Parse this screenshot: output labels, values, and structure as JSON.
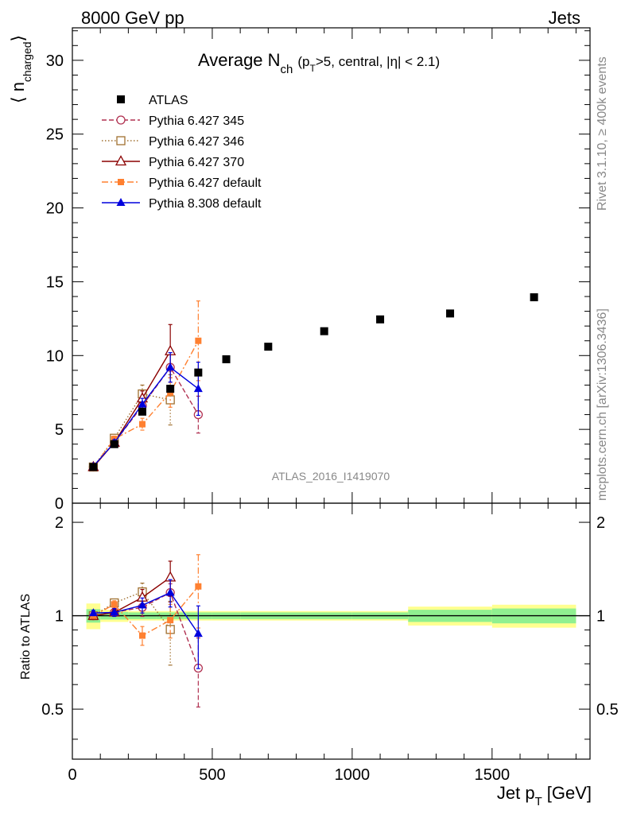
{
  "header": {
    "left": "8000 GeV pp",
    "right": "Jets"
  },
  "side_labels": {
    "rivet": "Rivet 3.1.10, ≥ 400k events",
    "mcplots": "mcplots.cern.ch [arXiv:1306.3436]"
  },
  "watermark": "ATLAS_2016_I1419070",
  "colors": {
    "atlas": "#000000",
    "p345": "#b03050",
    "p346": "#a07030",
    "p370": "#8b0000",
    "p6def": "#ff8030",
    "p8def": "#0000dd",
    "band_inner": "#90f090",
    "band_outer": "#ffff90"
  },
  "chart_data": {
    "type": "scatter",
    "title": {
      "prefix": "Average N",
      "sub": "ch",
      "paren_open": "(p",
      "paren_sub": "T",
      "rest": ">5, central, |η| < 2.1)"
    },
    "xlabel": {
      "main": "Jet p",
      "sub": "T",
      "unit": "[GeV]"
    },
    "ylabel": {
      "open": "⟨ n",
      "sub": "charged",
      "close": "⟩"
    },
    "ratio_ylabel": "Ratio to ATLAS",
    "xlim": [
      0,
      1850
    ],
    "ylim": [
      0,
      32.2
    ],
    "ratio_ylim": [
      0.345,
      2.305
    ],
    "x_ticks": [
      {
        "v": 0,
        "label": "0"
      },
      {
        "v": 500,
        "label": "500"
      },
      {
        "v": 1000,
        "label": "1000"
      },
      {
        "v": 1500,
        "label": "1500"
      }
    ],
    "y_ticks": [
      {
        "v": 0,
        "label": "0"
      },
      {
        "v": 5,
        "label": "5"
      },
      {
        "v": 10,
        "label": "10"
      },
      {
        "v": 15,
        "label": "15"
      },
      {
        "v": 20,
        "label": "20"
      },
      {
        "v": 25,
        "label": "25"
      },
      {
        "v": 30,
        "label": "30"
      }
    ],
    "ratio_ticks": [
      {
        "v": 0.5,
        "label": "0.5"
      },
      {
        "v": 1,
        "label": "1"
      },
      {
        "v": 2,
        "label": "2"
      }
    ],
    "atlas": {
      "name": "ATLAS",
      "bin_edges": [
        50,
        100,
        200,
        300,
        400,
        500,
        600,
        800,
        1000,
        1200,
        1500,
        1800
      ],
      "x": [
        75,
        150,
        250,
        350,
        450,
        550,
        700,
        900,
        1100,
        1350,
        1650
      ],
      "y": [
        2.45,
        4.0,
        6.2,
        7.75,
        8.85,
        9.75,
        10.6,
        11.65,
        12.45,
        12.85,
        13.95
      ],
      "band_inner": [
        0.05,
        0.028,
        0.025,
        0.025,
        0.025,
        0.025,
        0.025,
        0.025,
        0.025,
        0.045,
        0.055
      ],
      "band_outer": [
        0.095,
        0.045,
        0.035,
        0.035,
        0.035,
        0.035,
        0.035,
        0.035,
        0.035,
        0.07,
        0.085
      ]
    },
    "series": [
      {
        "name": "Pythia 6.427 345",
        "color_key": "p345",
        "marker": "circle-open",
        "dash": "6,3",
        "x": [
          75,
          150,
          250,
          350,
          450
        ],
        "y": [
          2.45,
          4.1,
          6.6,
          9.2,
          6.0
        ],
        "err": [
          0.1,
          0.2,
          0.5,
          1.0,
          1.25
        ],
        "ratio_err": [
          0.02,
          0.03,
          0.07,
          0.08,
          0.17
        ]
      },
      {
        "name": "Pythia 6.427 346",
        "color_key": "p346",
        "marker": "square-open",
        "dash": "1.5,2.5",
        "x": [
          75,
          150,
          250,
          350,
          450
        ],
        "y": [
          2.45,
          4.4,
          7.4,
          7.0,
          null
        ],
        "err": [
          0.1,
          0.2,
          0.6,
          1.7,
          0
        ],
        "ratio_err": [
          0.02,
          0.03,
          0.08,
          0.21,
          0
        ]
      },
      {
        "name": "Pythia 6.427 370",
        "color_key": "p370",
        "marker": "triangle-open",
        "dash": "",
        "x": [
          75,
          150,
          250,
          350,
          450
        ],
        "y": [
          2.45,
          4.1,
          7.1,
          10.3,
          null
        ],
        "err": [
          0.1,
          0.2,
          0.5,
          1.8,
          0
        ],
        "ratio_err": [
          0.02,
          0.03,
          0.07,
          0.17,
          0
        ]
      },
      {
        "name": "Pythia 6.427 default",
        "color_key": "p6def",
        "marker": "square-filled",
        "dash": "8,3,2,3",
        "x": [
          75,
          150,
          250,
          350,
          450
        ],
        "y": [
          2.45,
          4.35,
          5.35,
          7.5,
          11.0
        ],
        "err": [
          0.1,
          0.2,
          0.4,
          1.0,
          2.7
        ],
        "ratio_err": [
          0.02,
          0.03,
          0.06,
          0.12,
          0.33
        ]
      },
      {
        "name": "Pythia 8.308 default",
        "color_key": "p8def",
        "marker": "triangle-filled",
        "dash": "",
        "x": [
          75,
          150,
          250,
          350,
          450
        ],
        "y": [
          2.5,
          4.1,
          6.7,
          9.2,
          7.75
        ],
        "err": [
          0.1,
          0.2,
          0.4,
          1.0,
          1.8
        ],
        "ratio_err": [
          0.02,
          0.03,
          0.06,
          0.12,
          0.2
        ]
      }
    ],
    "legend_position": "top-left"
  }
}
